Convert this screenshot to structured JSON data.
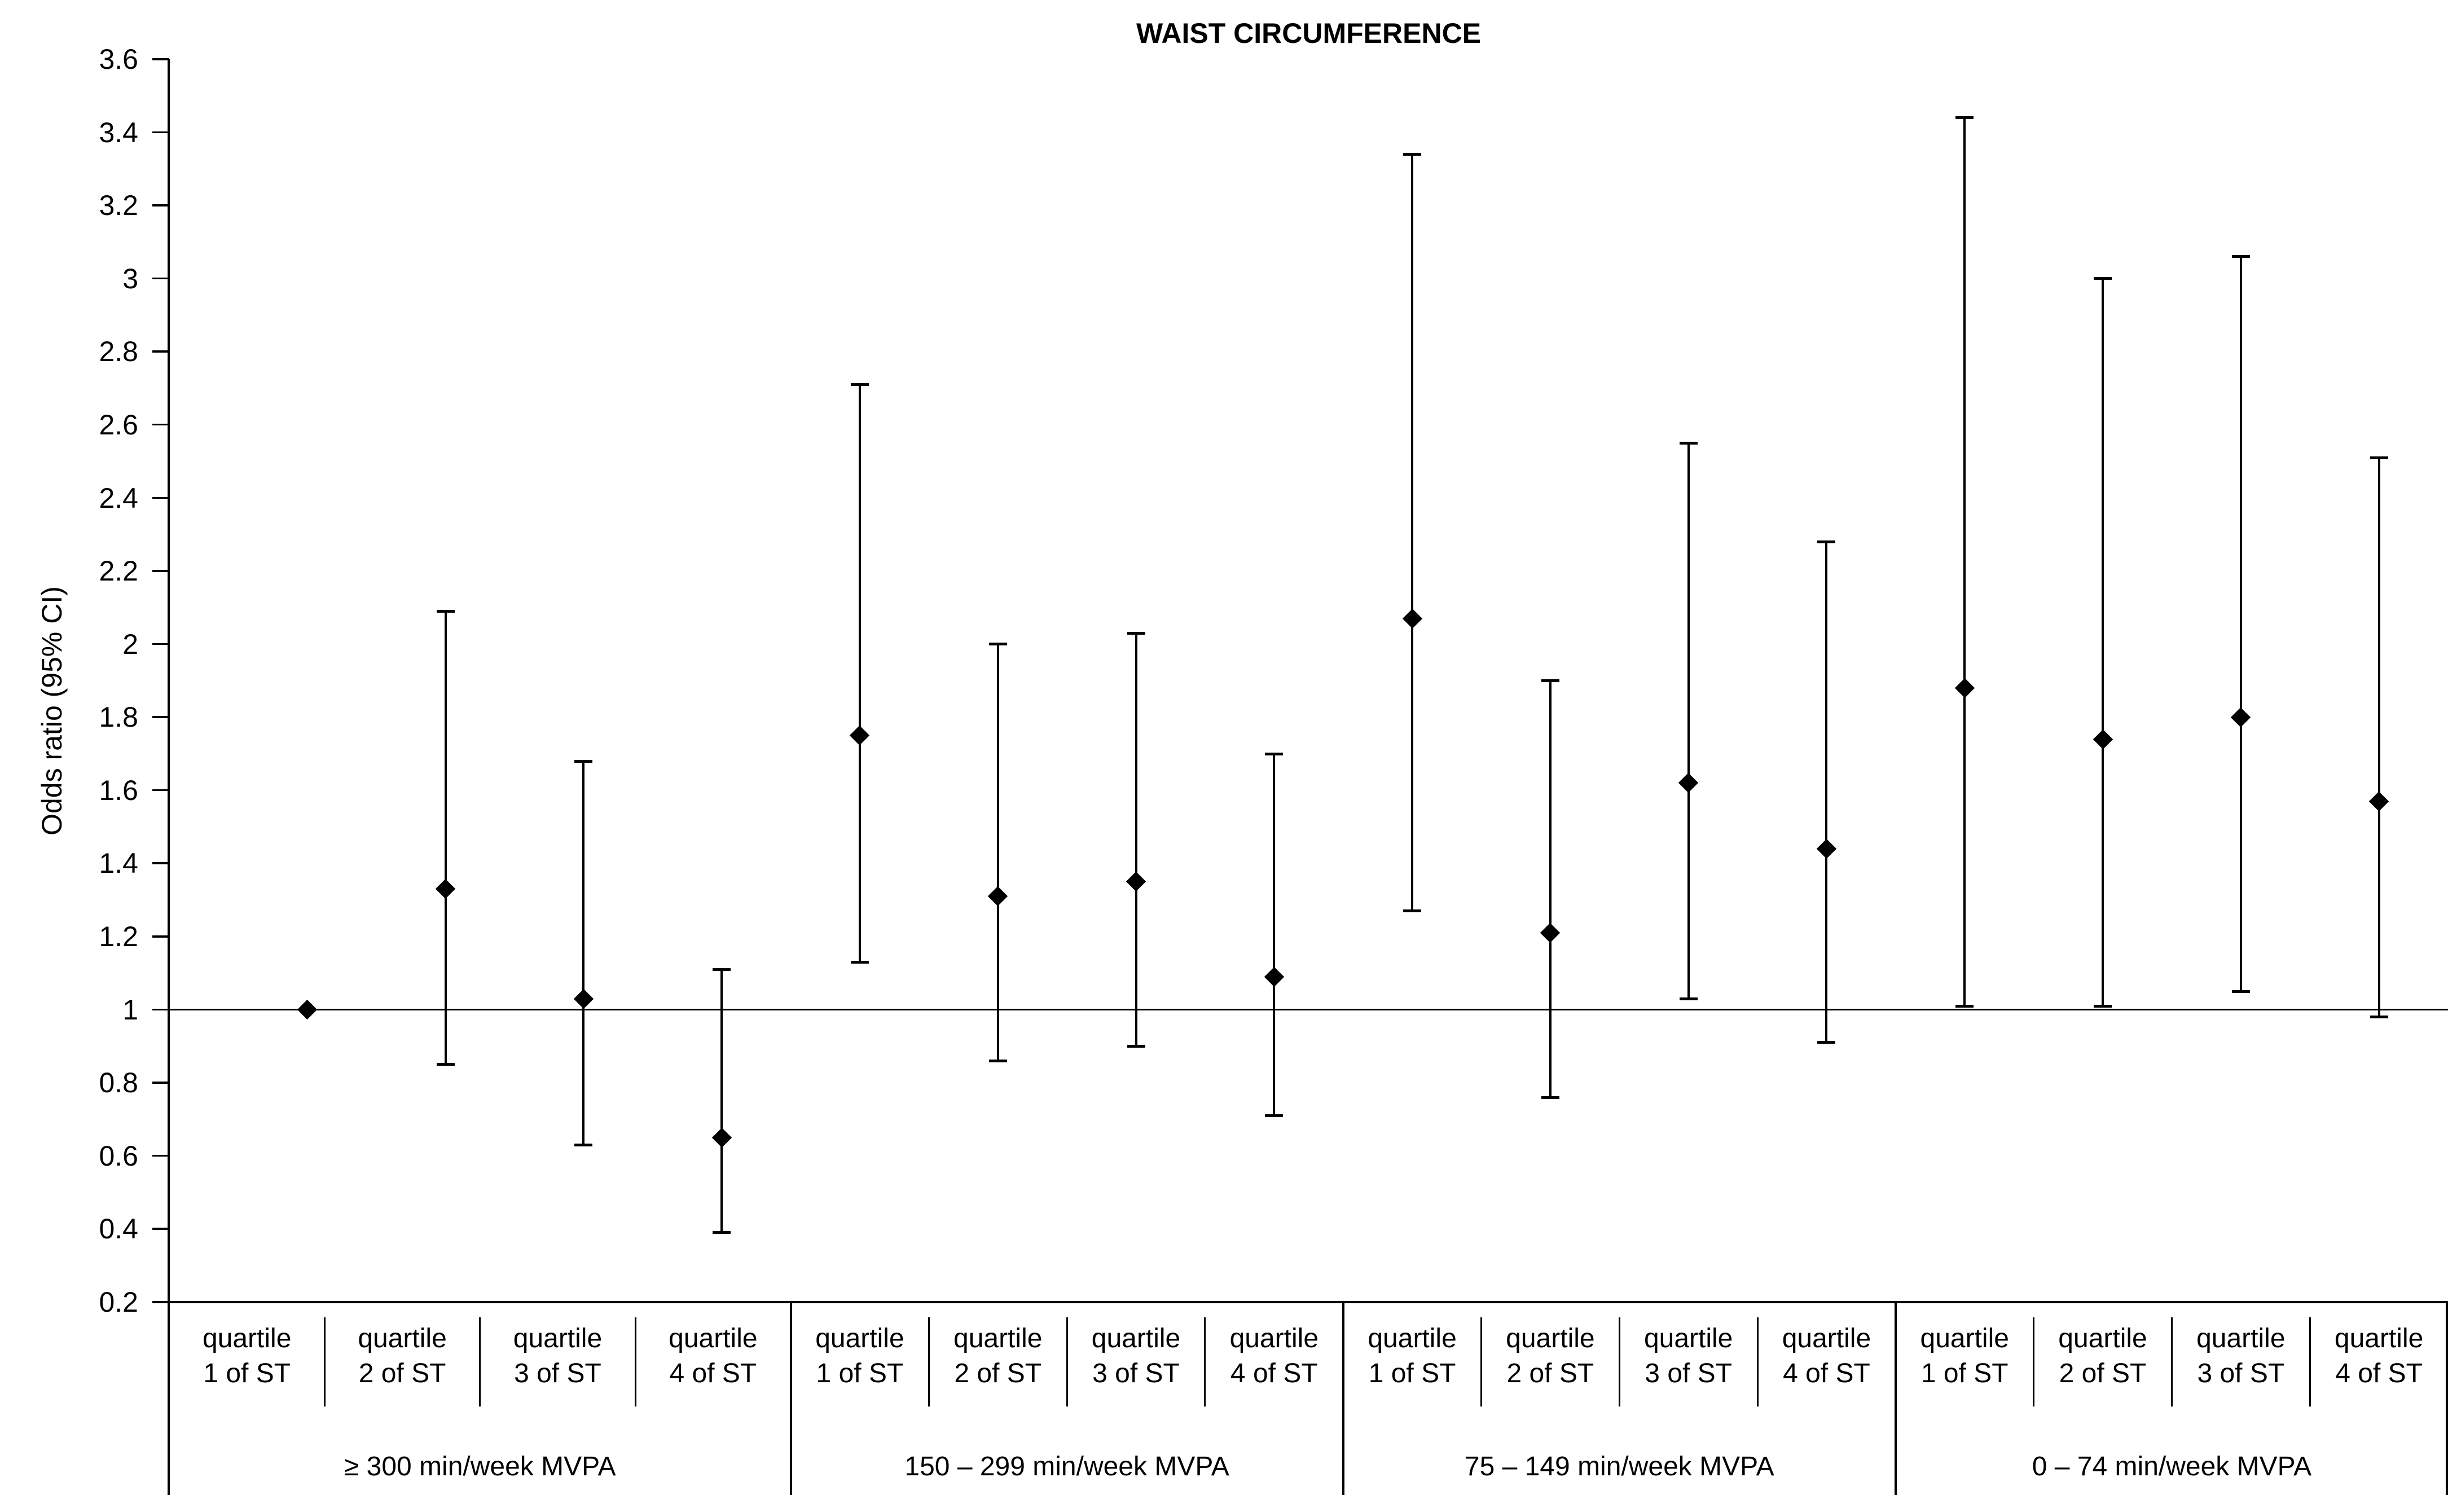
{
  "chart_data": {
    "type": "scatter",
    "subtype": "forest-plot-error-bars",
    "title": "WAIST CIRCUMFERENCE",
    "ylabel": "Odds ratio (95% CI)",
    "xlabel": "",
    "ylim": [
      0.2,
      3.6
    ],
    "ytick_step": 0.2,
    "ytick_labels": [
      "3.6",
      "3.4",
      "3.2",
      "3",
      "2.8",
      "2.6",
      "2.4",
      "2.2",
      "2",
      "1.8",
      "1.6",
      "1.4",
      "1.2",
      "1",
      "0.8",
      "0.6",
      "0.4",
      "0.2"
    ],
    "reference_line_y": 1,
    "grid": false,
    "legend": false,
    "marker": "diamond",
    "marker_color": "#000000",
    "line_color": "#000000",
    "background_color": "#ffffff",
    "groups": [
      {
        "label": "≥ 300 min/week MVPA",
        "points": [
          {
            "quartile_line1": "quartile",
            "quartile_line2": "1 of ST",
            "or": 1.0,
            "ci_low": null,
            "ci_high": null
          },
          {
            "quartile_line1": "quartile",
            "quartile_line2": "2 of ST",
            "or": 1.33,
            "ci_low": 0.85,
            "ci_high": 2.09
          },
          {
            "quartile_line1": "quartile",
            "quartile_line2": "3 of ST",
            "or": 1.03,
            "ci_low": 0.63,
            "ci_high": 1.68
          },
          {
            "quartile_line1": "quartile",
            "quartile_line2": "4 of ST",
            "or": 0.65,
            "ci_low": 0.39,
            "ci_high": 1.11
          }
        ]
      },
      {
        "label": "150 – 299 min/week MVPA",
        "points": [
          {
            "quartile_line1": "quartile",
            "quartile_line2": "1 of ST",
            "or": 1.75,
            "ci_low": 1.13,
            "ci_high": 2.71
          },
          {
            "quartile_line1": "quartile",
            "quartile_line2": "2 of ST",
            "or": 1.31,
            "ci_low": 0.86,
            "ci_high": 2.0
          },
          {
            "quartile_line1": "quartile",
            "quartile_line2": "3 of ST",
            "or": 1.35,
            "ci_low": 0.9,
            "ci_high": 2.03
          },
          {
            "quartile_line1": "quartile",
            "quartile_line2": "4 of ST",
            "or": 1.09,
            "ci_low": 0.71,
            "ci_high": 1.7
          }
        ]
      },
      {
        "label": "75 – 149 min/week MVPA",
        "points": [
          {
            "quartile_line1": "quartile",
            "quartile_line2": "1 of ST",
            "or": 2.07,
            "ci_low": 1.27,
            "ci_high": 3.34
          },
          {
            "quartile_line1": "quartile",
            "quartile_line2": "2 of ST",
            "or": 1.21,
            "ci_low": 0.76,
            "ci_high": 1.9
          },
          {
            "quartile_line1": "quartile",
            "quartile_line2": "3 of ST",
            "or": 1.62,
            "ci_low": 1.03,
            "ci_high": 2.55
          },
          {
            "quartile_line1": "quartile",
            "quartile_line2": "4 of ST",
            "or": 1.44,
            "ci_low": 0.91,
            "ci_high": 2.28
          }
        ]
      },
      {
        "label": "0 – 74 min/week MVPA",
        "points": [
          {
            "quartile_line1": "quartile",
            "quartile_line2": "1 of ST",
            "or": 1.88,
            "ci_low": 1.01,
            "ci_high": 3.44
          },
          {
            "quartile_line1": "quartile",
            "quartile_line2": "2 of ST",
            "or": 1.74,
            "ci_low": 1.01,
            "ci_high": 3.0
          },
          {
            "quartile_line1": "quartile",
            "quartile_line2": "3 of ST",
            "or": 1.8,
            "ci_low": 1.05,
            "ci_high": 3.06
          },
          {
            "quartile_line1": "quartile",
            "quartile_line2": "4 of ST",
            "or": 1.57,
            "ci_low": 0.98,
            "ci_high": 2.51
          }
        ]
      }
    ]
  }
}
